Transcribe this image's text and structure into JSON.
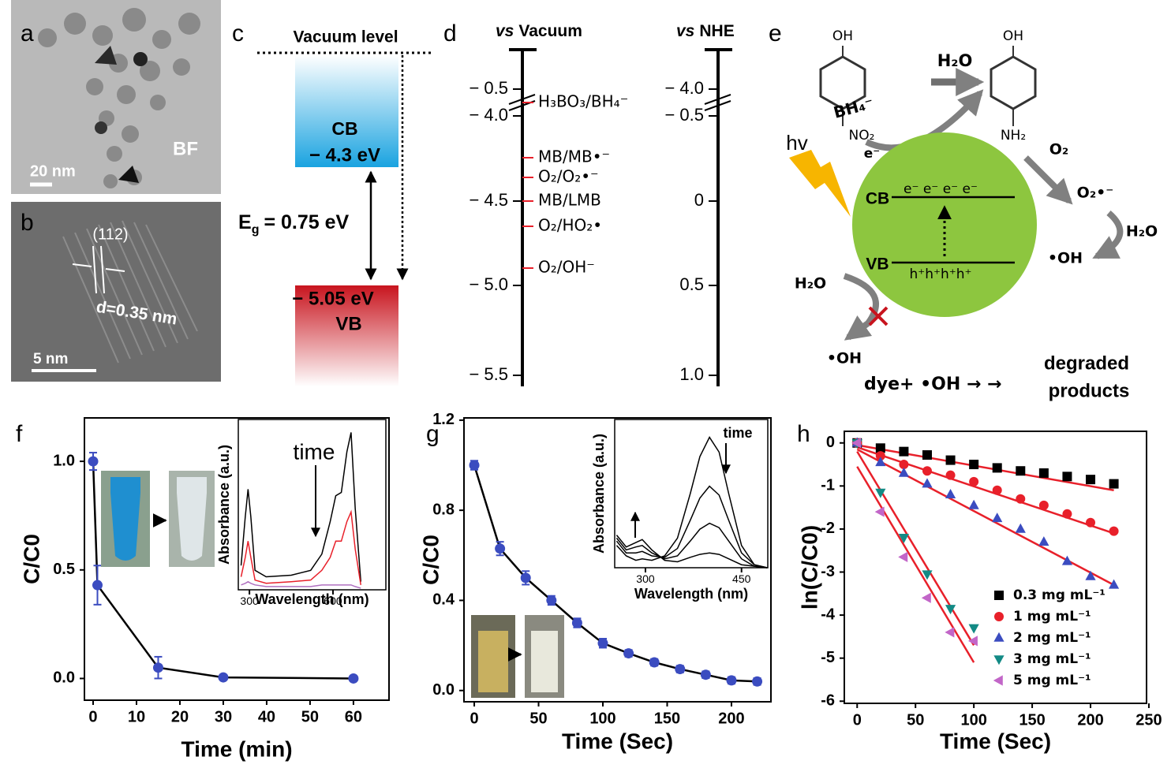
{
  "panels": {
    "a": {
      "label": "a",
      "mode": "BF",
      "scale_bar": "20 nm"
    },
    "b": {
      "label": "b",
      "plane": "(112)",
      "spacing": "d=0.35 nm",
      "scale_bar": "5 nm"
    },
    "c": {
      "label": "c",
      "vacuum": "Vacuum level",
      "cb": "CB",
      "cb_energy": "− 4.3 eV",
      "gap_symbol": "E",
      "gap_sub": "g",
      "gap_value": "= 0.75 eV",
      "vb_energy": "− 5.05 eV",
      "vb": "VB"
    },
    "d": {
      "label": "d",
      "left_prefix": "vs",
      "left_title": "Vacuum",
      "right_prefix": "vs",
      "right_title": "NHE",
      "left_ticks": [
        "− 0.5",
        "− 4.0",
        "− 4.5",
        "− 5.0",
        "− 5.5"
      ],
      "right_ticks": [
        "− 4.0",
        "− 0.5",
        "0",
        "0.5",
        "1.0"
      ],
      "couples": [
        "H₃BO₃/BH₄⁻",
        "MB/MB•⁻",
        "O₂/O₂•⁻",
        "MB/LMB",
        "O₂/HO₂•",
        "O₂/OH⁻"
      ]
    },
    "e": {
      "label": "e",
      "reactant_oh": "OH",
      "reactant_no2": "NO₂",
      "product_oh": "OH",
      "product_nh2": "NH₂",
      "water_top": "H₂O",
      "borohydride": "BH₄⁻",
      "electron": "e⁻",
      "light": "hv",
      "cb": "CB",
      "cb_electrons": "e⁻ e⁻ e⁻ e⁻",
      "vb": "VB",
      "vb_holes": "h⁺h⁺h⁺h⁺",
      "oxygen": "O₂",
      "superoxide": "O₂•⁻",
      "water_right": "H₂O",
      "hydroxyl_right": "•OH",
      "water_left": "H₂O",
      "hydroxyl_left": "•OH",
      "reaction": "dye+ •OH → →",
      "product_line1": "degraded",
      "product_line2": "products"
    }
  },
  "chart_data": [
    {
      "type": "line",
      "panel_label": "f",
      "xlabel": "Time (min)",
      "ylabel": "C/C0",
      "color": "#3b4cc0",
      "line_color": "#000000",
      "marker": "circle",
      "x": [
        0,
        1,
        15,
        30,
        60
      ],
      "values": [
        1.0,
        0.43,
        0.05,
        0.005,
        0.0
      ],
      "errors": [
        0.04,
        0.09,
        0.05,
        0.01,
        0.01
      ],
      "xlim": [
        -2,
        68.2
      ],
      "xticks": [
        0,
        10,
        20,
        30,
        40,
        50,
        60
      ],
      "ylim": [
        -0.1,
        1.2
      ],
      "yticks": [
        {
          "value": 0,
          "label": "0.0"
        },
        {
          "value": 0.5,
          "label": "0.5"
        },
        {
          "value": 1,
          "label": "1.0"
        }
      ]
    },
    {
      "type": "line",
      "panel_label": "g",
      "xlabel": "Time (Sec)",
      "ylabel": "C/C0",
      "color": "#3b4cc0",
      "line_color": "#000000",
      "marker": "circle",
      "x": [
        0,
        20,
        40,
        60,
        80,
        100,
        120,
        140,
        160,
        180,
        200,
        220
      ],
      "values": [
        1.0,
        0.63,
        0.5,
        0.4,
        0.3,
        0.21,
        0.165,
        0.125,
        0.095,
        0.07,
        0.045,
        0.04
      ],
      "errors": [
        0.02,
        0.03,
        0.03,
        0.02,
        0.02,
        0.02,
        0.015,
        0.015,
        0.015,
        0.015,
        0.015,
        0.015
      ],
      "xlim": [
        -8,
        230.7
      ],
      "xticks": [
        0,
        50,
        100,
        150,
        200
      ],
      "ylim": [
        -0.05,
        1.21
      ],
      "yticks": [
        {
          "value": 0,
          "label": "0.0"
        },
        {
          "value": 0.4,
          "label": "0.4"
        },
        {
          "value": 0.8,
          "label": "0.8"
        },
        {
          "value": 1.2,
          "label": "1.2"
        }
      ]
    },
    {
      "type": "scatter",
      "panel_label": "h",
      "xlabel": "Time (Sec)",
      "ylabel": "ln(C/C0)",
      "legend_loc": "lower right",
      "xlim": [
        -11,
        248
      ],
      "xticks": [
        0,
        50,
        100,
        150,
        200,
        250
      ],
      "ylim": [
        -6.05,
        0.27
      ],
      "yticks": [
        0,
        -1,
        -2,
        -3,
        -4,
        -5,
        -6
      ],
      "series": [
        {
          "name": "0.3 mg mL⁻¹",
          "color": "#000000",
          "marker": "square",
          "x": [
            0,
            20,
            40,
            60,
            80,
            100,
            120,
            140,
            160,
            180,
            200,
            220
          ],
          "values": [
            0,
            -0.12,
            -0.2,
            -0.28,
            -0.4,
            -0.5,
            -0.58,
            -0.65,
            -0.7,
            -0.78,
            -0.85,
            -0.95
          ]
        },
        {
          "name": "1 mg mL⁻¹",
          "color": "#e8202a",
          "marker": "circle",
          "x": [
            0,
            20,
            40,
            60,
            80,
            100,
            120,
            140,
            160,
            180,
            200,
            220
          ],
          "values": [
            0,
            -0.3,
            -0.5,
            -0.65,
            -0.75,
            -0.9,
            -1.1,
            -1.3,
            -1.45,
            -1.65,
            -1.85,
            -2.05
          ]
        },
        {
          "name": "2 mg mL⁻¹",
          "color": "#3b4cc0",
          "marker": "triangle-up",
          "x": [
            0,
            20,
            40,
            60,
            80,
            100,
            120,
            140,
            160,
            180,
            200,
            220
          ],
          "values": [
            0,
            -0.45,
            -0.7,
            -0.95,
            -1.2,
            -1.45,
            -1.75,
            -2.0,
            -2.3,
            -2.75,
            -3.1,
            -3.3
          ]
        },
        {
          "name": "3 mg mL⁻¹",
          "color": "#138a85",
          "marker": "triangle-down",
          "x": [
            0,
            20,
            40,
            60,
            80,
            100
          ],
          "values": [
            0,
            -1.15,
            -2.2,
            -3.05,
            -3.85,
            -4.3
          ]
        },
        {
          "name": "5 mg mL⁻¹",
          "color": "#c266c8",
          "marker": "triangle-left",
          "x": [
            0,
            20,
            40,
            60,
            80,
            100
          ],
          "values": [
            0,
            -1.6,
            -2.65,
            -3.6,
            -4.4,
            -4.6
          ]
        }
      ],
      "fits": [
        {
          "color": "#e8202a",
          "x": [
            0,
            220
          ],
          "values": [
            -0.05,
            -1.1
          ]
        },
        {
          "color": "#e8202a",
          "x": [
            0,
            220
          ],
          "values": [
            -0.1,
            -2.1
          ]
        },
        {
          "color": "#e8202a",
          "x": [
            0,
            220
          ],
          "values": [
            -0.15,
            -3.3
          ]
        },
        {
          "color": "#e8202a",
          "x": [
            0,
            100
          ],
          "values": [
            -0.55,
            -5.1
          ]
        },
        {
          "color": "#e8202a",
          "x": [
            0,
            100
          ],
          "values": [
            -0.2,
            -4.7
          ]
        }
      ]
    },
    {
      "type": "line",
      "xlabel": "Wavelength (nm)",
      "ylabel": "Absorbance (a.u.)",
      "annotation": "time",
      "x": [
        270,
        285,
        295,
        305,
        320,
        360,
        450,
        520,
        560,
        590,
        610,
        630,
        650,
        665,
        680,
        700
      ],
      "xlim": [
        260,
        790
      ],
      "xticks": [
        300,
        600
      ],
      "ylim": [
        0,
        1.05
      ],
      "series": [
        {
          "color": "#000000",
          "values": [
            0.15,
            0.45,
            0.62,
            0.45,
            0.12,
            0.08,
            0.09,
            0.12,
            0.22,
            0.42,
            0.58,
            0.6,
            0.85,
            0.97,
            0.5,
            0.05
          ]
        },
        {
          "color": "#e8202a",
          "values": [
            0.08,
            0.2,
            0.3,
            0.2,
            0.06,
            0.04,
            0.05,
            0.06,
            0.12,
            0.2,
            0.3,
            0.3,
            0.42,
            0.48,
            0.25,
            0.03
          ]
        },
        {
          "color": "#b070c0",
          "values": [
            0.03,
            0.04,
            0.05,
            0.04,
            0.03,
            0.02,
            0.02,
            0.02,
            0.03,
            0.03,
            0.03,
            0.03,
            0.03,
            0.03,
            0.02,
            0.01
          ]
        }
      ]
    },
    {
      "type": "line",
      "xlabel": "Wavelength (nm)",
      "ylabel": "Absorbance (a.u.)",
      "annotation": "time",
      "x": [
        255,
        270,
        285,
        295,
        310,
        330,
        350,
        370,
        385,
        400,
        415,
        430,
        450,
        470,
        490
      ],
      "xlim": [
        252,
        491
      ],
      "xticks": [
        300,
        450
      ],
      "ylim": [
        0,
        1
      ],
      "series": [
        {
          "color": "#000000",
          "values": [
            0.15,
            0.08,
            0.05,
            0.06,
            0.05,
            0.08,
            0.2,
            0.5,
            0.75,
            0.88,
            0.78,
            0.5,
            0.15,
            0.02,
            0.0
          ]
        },
        {
          "color": "#000000",
          "values": [
            0.18,
            0.1,
            0.1,
            0.11,
            0.08,
            0.07,
            0.13,
            0.32,
            0.47,
            0.55,
            0.49,
            0.32,
            0.1,
            0.02,
            0.0
          ]
        },
        {
          "color": "#000000",
          "values": [
            0.2,
            0.12,
            0.14,
            0.15,
            0.1,
            0.06,
            0.08,
            0.18,
            0.26,
            0.3,
            0.27,
            0.18,
            0.06,
            0.01,
            0.0
          ]
        },
        {
          "color": "#000000",
          "values": [
            0.22,
            0.14,
            0.17,
            0.19,
            0.12,
            0.05,
            0.04,
            0.07,
            0.09,
            0.1,
            0.09,
            0.06,
            0.02,
            0.01,
            0.0
          ]
        }
      ]
    }
  ]
}
